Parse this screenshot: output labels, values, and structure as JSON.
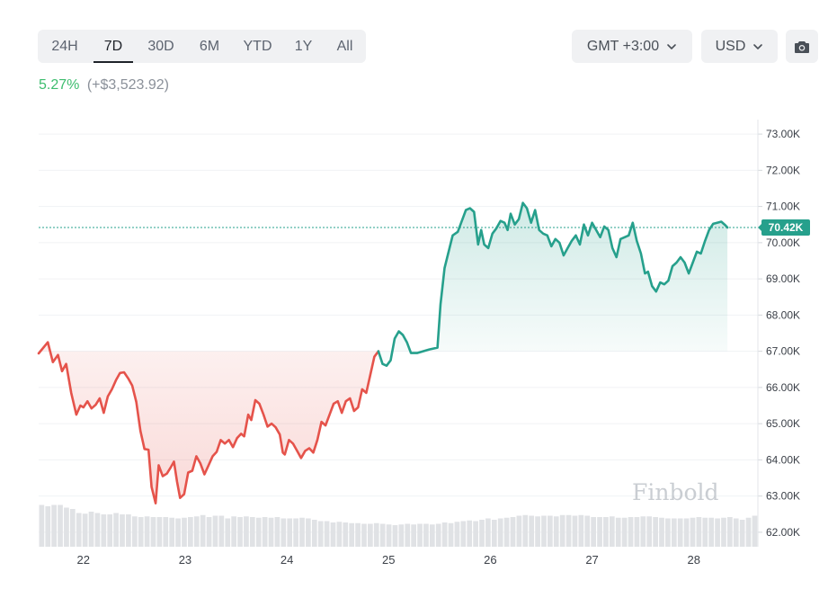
{
  "range_tabs": [
    {
      "label": "24H",
      "active": false
    },
    {
      "label": "7D",
      "active": true
    },
    {
      "label": "30D",
      "active": false
    },
    {
      "label": "6M",
      "active": false
    },
    {
      "label": "YTD",
      "active": false
    },
    {
      "label": "1Y",
      "active": false
    },
    {
      "label": "All",
      "active": false
    }
  ],
  "timezone": {
    "label": "GMT +3:00",
    "icon": "chevron-down-icon"
  },
  "currency": {
    "label": "USD",
    "icon": "chevron-down-icon"
  },
  "screenshot": {
    "icon": "camera-icon"
  },
  "change": {
    "percent": "5.27%",
    "absolute": "(+$3,523.92)"
  },
  "watermark": "Finbold",
  "colors": {
    "down": "#e5534b",
    "up": "#26a08c",
    "positive_text": "#3dbd6e"
  },
  "chart_data": {
    "type": "area",
    "ylim": [
      61.6,
      73.4
    ],
    "y_ticks": [
      "73.00K",
      "72.00K",
      "71.00K",
      "70.00K",
      "69.00K",
      "68.00K",
      "67.00K",
      "66.00K",
      "65.00K",
      "64.00K",
      "63.00K",
      "62.00K"
    ],
    "y_tick_values": [
      73,
      72,
      71,
      70,
      69,
      68,
      67,
      66,
      65,
      64,
      63,
      62
    ],
    "x_range": [
      21.56,
      28.63
    ],
    "x_ticks": [
      "22",
      "23",
      "24",
      "25",
      "26",
      "27",
      "28"
    ],
    "x_tick_values": [
      22,
      23,
      24,
      25,
      26,
      27,
      28
    ],
    "current_price": {
      "value": 70.42,
      "label": "70.42K"
    },
    "series": [
      {
        "segment": "down",
        "points": [
          [
            21.56,
            66.94
          ],
          [
            21.65,
            67.25
          ],
          [
            21.7,
            66.7
          ],
          [
            21.75,
            66.9
          ],
          [
            21.79,
            66.45
          ],
          [
            21.83,
            66.65
          ],
          [
            21.88,
            65.85
          ],
          [
            21.93,
            65.25
          ],
          [
            21.97,
            65.5
          ],
          [
            22.0,
            65.45
          ],
          [
            22.04,
            65.62
          ],
          [
            22.08,
            65.42
          ],
          [
            22.12,
            65.52
          ],
          [
            22.16,
            65.7
          ],
          [
            22.2,
            65.3
          ],
          [
            22.24,
            65.75
          ],
          [
            22.28,
            65.95
          ],
          [
            22.32,
            66.2
          ],
          [
            22.36,
            66.4
          ],
          [
            22.4,
            66.42
          ],
          [
            22.44,
            66.25
          ],
          [
            22.48,
            66.05
          ],
          [
            22.52,
            65.6
          ],
          [
            22.56,
            64.8
          ],
          [
            22.6,
            64.3
          ],
          [
            22.64,
            64.28
          ],
          [
            22.67,
            63.25
          ],
          [
            22.71,
            62.8
          ],
          [
            22.74,
            63.85
          ],
          [
            22.78,
            63.55
          ],
          [
            22.82,
            63.62
          ],
          [
            22.86,
            63.8
          ],
          [
            22.89,
            63.95
          ],
          [
            22.92,
            63.4
          ],
          [
            22.95,
            62.95
          ],
          [
            22.99,
            63.05
          ],
          [
            23.03,
            63.65
          ],
          [
            23.07,
            63.7
          ],
          [
            23.11,
            64.1
          ],
          [
            23.15,
            63.9
          ],
          [
            23.19,
            63.6
          ],
          [
            23.23,
            63.85
          ],
          [
            23.27,
            64.1
          ],
          [
            23.31,
            64.22
          ],
          [
            23.35,
            64.55
          ],
          [
            23.39,
            64.45
          ],
          [
            23.43,
            64.55
          ],
          [
            23.47,
            64.35
          ],
          [
            23.51,
            64.6
          ],
          [
            23.55,
            64.72
          ],
          [
            23.58,
            64.65
          ],
          [
            23.62,
            65.25
          ],
          [
            23.65,
            65.1
          ],
          [
            23.69,
            65.65
          ],
          [
            23.73,
            65.55
          ],
          [
            23.77,
            65.25
          ],
          [
            23.81,
            64.92
          ],
          [
            23.85,
            65.0
          ],
          [
            23.89,
            64.9
          ],
          [
            23.93,
            64.7
          ],
          [
            23.96,
            64.2
          ],
          [
            23.98,
            64.15
          ],
          [
            24.02,
            64.55
          ],
          [
            24.06,
            64.45
          ],
          [
            24.1,
            64.25
          ],
          [
            24.14,
            64.05
          ],
          [
            24.18,
            64.25
          ],
          [
            24.22,
            64.32
          ],
          [
            24.26,
            64.2
          ],
          [
            24.3,
            64.55
          ],
          [
            24.34,
            65.05
          ],
          [
            24.38,
            64.95
          ],
          [
            24.42,
            65.25
          ],
          [
            24.46,
            65.55
          ],
          [
            24.5,
            65.62
          ],
          [
            24.54,
            65.3
          ],
          [
            24.58,
            65.62
          ],
          [
            24.62,
            65.7
          ],
          [
            24.66,
            65.35
          ],
          [
            24.7,
            65.45
          ],
          [
            24.74,
            65.95
          ],
          [
            24.78,
            65.85
          ],
          [
            24.82,
            66.35
          ],
          [
            24.86,
            66.85
          ],
          [
            24.9,
            67.0
          ]
        ]
      },
      {
        "segment": "up",
        "points": [
          [
            24.9,
            67.0
          ],
          [
            24.94,
            66.65
          ],
          [
            24.98,
            66.6
          ],
          [
            25.02,
            66.75
          ],
          [
            25.06,
            67.35
          ],
          [
            25.1,
            67.55
          ],
          [
            25.14,
            67.45
          ],
          [
            25.18,
            67.25
          ],
          [
            25.22,
            66.95
          ],
          [
            25.28,
            66.95
          ],
          [
            25.4,
            67.05
          ],
          [
            25.48,
            67.1
          ],
          [
            25.51,
            68.3
          ],
          [
            25.55,
            69.3
          ],
          [
            25.63,
            70.2
          ],
          [
            25.68,
            70.3
          ],
          [
            25.72,
            70.6
          ],
          [
            25.76,
            70.9
          ],
          [
            25.8,
            70.95
          ],
          [
            25.84,
            70.85
          ],
          [
            25.88,
            69.95
          ],
          [
            25.91,
            70.35
          ],
          [
            25.94,
            69.95
          ],
          [
            25.98,
            69.85
          ],
          [
            26.02,
            70.25
          ],
          [
            26.06,
            70.4
          ],
          [
            26.1,
            70.6
          ],
          [
            26.14,
            70.55
          ],
          [
            26.17,
            70.35
          ],
          [
            26.2,
            70.8
          ],
          [
            26.24,
            70.5
          ],
          [
            26.28,
            70.65
          ],
          [
            26.32,
            71.1
          ],
          [
            26.36,
            70.95
          ],
          [
            26.4,
            70.55
          ],
          [
            26.44,
            70.9
          ],
          [
            26.48,
            70.35
          ],
          [
            26.52,
            70.25
          ],
          [
            26.56,
            70.2
          ],
          [
            26.6,
            69.9
          ],
          [
            26.64,
            70.1
          ],
          [
            26.68,
            70.0
          ],
          [
            26.72,
            69.65
          ],
          [
            26.76,
            69.85
          ],
          [
            26.8,
            70.05
          ],
          [
            26.84,
            70.2
          ],
          [
            26.88,
            69.95
          ],
          [
            26.92,
            70.5
          ],
          [
            26.96,
            70.2
          ],
          [
            27.0,
            70.55
          ],
          [
            27.04,
            70.35
          ],
          [
            27.08,
            70.15
          ],
          [
            27.12,
            70.45
          ],
          [
            27.16,
            70.35
          ],
          [
            27.2,
            69.85
          ],
          [
            27.24,
            69.6
          ],
          [
            27.28,
            70.1
          ],
          [
            27.32,
            70.15
          ],
          [
            27.36,
            70.2
          ],
          [
            27.4,
            70.55
          ],
          [
            27.44,
            70.05
          ],
          [
            27.48,
            69.7
          ],
          [
            27.52,
            69.15
          ],
          [
            27.55,
            69.2
          ],
          [
            27.59,
            68.8
          ],
          [
            27.63,
            68.65
          ],
          [
            27.67,
            68.9
          ],
          [
            27.71,
            68.85
          ],
          [
            27.75,
            68.95
          ],
          [
            27.79,
            69.35
          ],
          [
            27.83,
            69.45
          ],
          [
            27.87,
            69.6
          ],
          [
            27.91,
            69.45
          ],
          [
            27.95,
            69.15
          ],
          [
            27.99,
            69.45
          ],
          [
            28.03,
            69.75
          ],
          [
            28.07,
            69.7
          ],
          [
            28.11,
            70.05
          ],
          [
            28.15,
            70.35
          ],
          [
            28.19,
            70.52
          ],
          [
            28.23,
            70.55
          ],
          [
            28.27,
            70.58
          ],
          [
            28.31,
            70.48
          ],
          [
            28.33,
            70.42
          ]
        ]
      }
    ],
    "volume_bars": [
      0.62,
      0.6,
      0.62,
      0.62,
      0.58,
      0.56,
      0.5,
      0.49,
      0.52,
      0.5,
      0.48,
      0.48,
      0.5,
      0.48,
      0.48,
      0.45,
      0.44,
      0.45,
      0.44,
      0.44,
      0.44,
      0.43,
      0.42,
      0.43,
      0.44,
      0.45,
      0.47,
      0.44,
      0.46,
      0.46,
      0.42,
      0.45,
      0.44,
      0.45,
      0.44,
      0.43,
      0.44,
      0.43,
      0.44,
      0.42,
      0.42,
      0.42,
      0.43,
      0.42,
      0.4,
      0.38,
      0.38,
      0.36,
      0.37,
      0.36,
      0.35,
      0.35,
      0.34,
      0.34,
      0.35,
      0.34,
      0.33,
      0.32,
      0.33,
      0.34,
      0.33,
      0.34,
      0.34,
      0.33,
      0.34,
      0.36,
      0.35,
      0.37,
      0.38,
      0.39,
      0.38,
      0.4,
      0.42,
      0.4,
      0.42,
      0.43,
      0.44,
      0.46,
      0.47,
      0.46,
      0.45,
      0.46,
      0.46,
      0.45,
      0.47,
      0.47,
      0.46,
      0.47,
      0.46,
      0.44,
      0.44,
      0.44,
      0.45,
      0.43,
      0.43,
      0.44,
      0.44,
      0.45,
      0.45,
      0.44,
      0.43,
      0.42,
      0.42,
      0.42,
      0.42,
      0.43,
      0.44,
      0.43,
      0.43,
      0.42,
      0.43,
      0.44,
      0.42,
      0.4,
      0.43,
      0.46
    ]
  }
}
